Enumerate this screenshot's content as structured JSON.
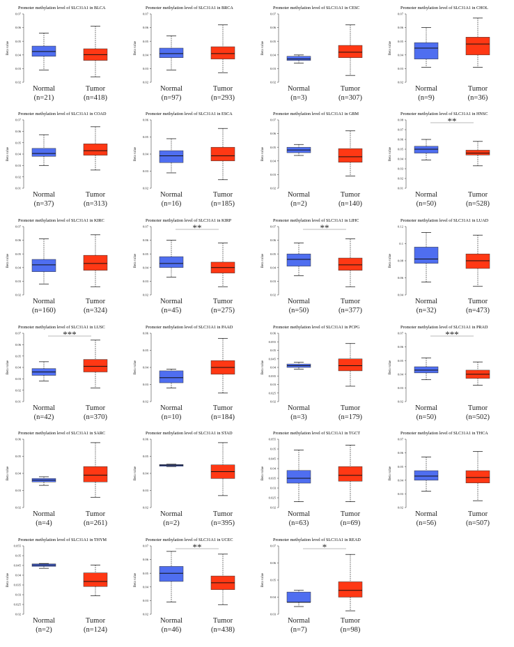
{
  "colors": {
    "normal": "#4f6ef0",
    "tumor": "#ff3814"
  },
  "chart_data": [
    {
      "type": "box",
      "title": "Promoter methylation level of SLC31A1 in BLCA",
      "ylabel": "Beta value",
      "ylim": [
        0.02,
        0.07
      ],
      "yticks": [
        "0.02",
        "0.03",
        "0.04",
        "0.05",
        "0.06",
        "0.07"
      ],
      "groups": [
        {
          "name": "Normal",
          "n": "(n=21)",
          "min": 0.029,
          "q1": 0.039,
          "median": 0.0425,
          "q3": 0.0465,
          "max": 0.056
        },
        {
          "name": "Tumor",
          "n": "(n=418)",
          "min": 0.024,
          "q1": 0.036,
          "median": 0.0402,
          "q3": 0.0445,
          "max": 0.061
        }
      ],
      "sig": ""
    },
    {
      "type": "box",
      "title": "Promoter methylation level of SLC31A1 in BRCA",
      "ylabel": "Beta value",
      "ylim": [
        0.02,
        0.07
      ],
      "yticks": [
        "0.02",
        "0.03",
        "0.04",
        "0.05",
        "0.06",
        "0.07"
      ],
      "groups": [
        {
          "name": "Normal",
          "n": "(n=97)",
          "min": 0.029,
          "q1": 0.038,
          "median": 0.041,
          "q3": 0.045,
          "max": 0.054
        },
        {
          "name": "Tumor",
          "n": "(n=293)",
          "min": 0.027,
          "q1": 0.037,
          "median": 0.041,
          "q3": 0.046,
          "max": 0.062
        }
      ],
      "sig": ""
    },
    {
      "type": "box",
      "title": "Promoter methylation level of SLC31A1 in CESC",
      "ylabel": "Beta value",
      "ylim": [
        0.02,
        0.07
      ],
      "yticks": [
        "0.02",
        "0.03",
        "0.04",
        "0.05",
        "0.06",
        "0.07"
      ],
      "groups": [
        {
          "name": "Normal",
          "n": "(n=3)",
          "min": 0.034,
          "q1": 0.036,
          "median": 0.037,
          "q3": 0.039,
          "max": 0.04
        },
        {
          "name": "Tumor",
          "n": "(n=307)",
          "min": 0.025,
          "q1": 0.038,
          "median": 0.042,
          "q3": 0.047,
          "max": 0.062
        }
      ],
      "sig": ""
    },
    {
      "type": "box",
      "title": "Promoter methylation level of SLC31A1 in CHOL",
      "ylabel": "Beta value",
      "ylim": [
        0.02,
        0.07
      ],
      "yticks": [
        "0.02",
        "0.03",
        "0.04",
        "0.05",
        "0.06",
        "0.07"
      ],
      "groups": [
        {
          "name": "Normal",
          "n": "(n=9)",
          "min": 0.031,
          "q1": 0.037,
          "median": 0.045,
          "q3": 0.049,
          "max": 0.06
        },
        {
          "name": "Tumor",
          "n": "(n=36)",
          "min": 0.031,
          "q1": 0.04,
          "median": 0.048,
          "q3": 0.053,
          "max": 0.067
        }
      ],
      "sig": ""
    },
    {
      "type": "box",
      "title": "Promoter methylation level of SLC31A1 in COAD",
      "ylabel": "Beta value",
      "ylim": [
        0.01,
        0.07
      ],
      "yticks": [
        "0.01",
        "0.02",
        "0.03",
        "0.04",
        "0.05",
        "0.06",
        "0.07"
      ],
      "groups": [
        {
          "name": "Normal",
          "n": "(n=37)",
          "min": 0.03,
          "q1": 0.038,
          "median": 0.0405,
          "q3": 0.045,
          "max": 0.057
        },
        {
          "name": "Tumor",
          "n": "(n=313)",
          "min": 0.026,
          "q1": 0.039,
          "median": 0.043,
          "q3": 0.049,
          "max": 0.064
        }
      ],
      "sig": ""
    },
    {
      "type": "box",
      "title": "Promoter methylation level of SLC31A1 in ESCA",
      "ylabel": "Beta value",
      "ylim": [
        0.02,
        0.06
      ],
      "yticks": [
        "0.02",
        "0.03",
        "0.04",
        "0.05",
        "0.06"
      ],
      "groups": [
        {
          "name": "Normal",
          "n": "(n=16)",
          "min": 0.029,
          "q1": 0.035,
          "median": 0.039,
          "q3": 0.042,
          "max": 0.049
        },
        {
          "name": "Tumor",
          "n": "(n=185)",
          "min": 0.025,
          "q1": 0.036,
          "median": 0.039,
          "q3": 0.044,
          "max": 0.055
        }
      ],
      "sig": ""
    },
    {
      "type": "box",
      "title": "Promoter methylation level of SLC31A1 in GBM",
      "ylabel": "Beta value",
      "ylim": [
        0.02,
        0.07
      ],
      "yticks": [
        "0.02",
        "0.03",
        "0.04",
        "0.05",
        "0.06",
        "0.07"
      ],
      "groups": [
        {
          "name": "Normal",
          "n": "(n=2)",
          "min": 0.044,
          "q1": 0.046,
          "median": 0.048,
          "q3": 0.05,
          "max": 0.052
        },
        {
          "name": "Tumor",
          "n": "(n=140)",
          "min": 0.029,
          "q1": 0.039,
          "median": 0.043,
          "q3": 0.049,
          "max": 0.062
        }
      ],
      "sig": ""
    },
    {
      "type": "box",
      "title": "Promoter methylation level of SLC31A1 in HNSC",
      "ylabel": "Beta value",
      "ylim": [
        0.01,
        0.08
      ],
      "yticks": [
        "0.01",
        "0.02",
        "0.03",
        "0.04",
        "0.05",
        "0.06",
        "0.07",
        "0.08"
      ],
      "groups": [
        {
          "name": "Normal",
          "n": "(n=50)",
          "min": 0.039,
          "q1": 0.046,
          "median": 0.05,
          "q3": 0.053,
          "max": 0.06
        },
        {
          "name": "Tumor",
          "n": "(n=528)",
          "min": 0.033,
          "q1": 0.044,
          "median": 0.046,
          "q3": 0.049,
          "max": 0.058
        }
      ],
      "sig": "**"
    },
    {
      "type": "box",
      "title": "Promoter methylation level of SLC31A1 in KIRC",
      "ylabel": "Beta value",
      "ylim": [
        0.02,
        0.07
      ],
      "yticks": [
        "0.02",
        "0.03",
        "0.04",
        "0.05",
        "0.06",
        "0.07"
      ],
      "groups": [
        {
          "name": "Normal",
          "n": "(n=160)",
          "min": 0.028,
          "q1": 0.037,
          "median": 0.042,
          "q3": 0.046,
          "max": 0.061
        },
        {
          "name": "Tumor",
          "n": "(n=324)",
          "min": 0.026,
          "q1": 0.038,
          "median": 0.043,
          "q3": 0.049,
          "max": 0.064
        }
      ],
      "sig": ""
    },
    {
      "type": "box",
      "title": "Promoter methylation level of SLC31A1 in KIRP",
      "ylabel": "Beta value",
      "ylim": [
        0.02,
        0.07
      ],
      "yticks": [
        "0.02",
        "0.03",
        "0.04",
        "0.05",
        "0.06",
        "0.07"
      ],
      "groups": [
        {
          "name": "Normal",
          "n": "(n=45)",
          "min": 0.033,
          "q1": 0.04,
          "median": 0.043,
          "q3": 0.048,
          "max": 0.06
        },
        {
          "name": "Tumor",
          "n": "(n=275)",
          "min": 0.026,
          "q1": 0.036,
          "median": 0.04,
          "q3": 0.044,
          "max": 0.058
        }
      ],
      "sig": "**"
    },
    {
      "type": "box",
      "title": "Promoter methylation level of SLC31A1 in LIHC",
      "ylabel": "Beta value",
      "ylim": [
        0.02,
        0.07
      ],
      "yticks": [
        "0.02",
        "0.03",
        "0.04",
        "0.05",
        "0.06",
        "0.07"
      ],
      "groups": [
        {
          "name": "Normal",
          "n": "(n=50)",
          "min": 0.034,
          "q1": 0.041,
          "median": 0.046,
          "q3": 0.05,
          "max": 0.058
        },
        {
          "name": "Tumor",
          "n": "(n=377)",
          "min": 0.026,
          "q1": 0.038,
          "median": 0.042,
          "q3": 0.047,
          "max": 0.061
        }
      ],
      "sig": "**"
    },
    {
      "type": "box",
      "title": "Promoter methylation level of SLC31A1 in LUAD",
      "ylabel": "Beta value",
      "ylim": [
        0.04,
        0.12
      ],
      "yticks": [
        "0.04",
        "0.06",
        "0.08",
        "0.1",
        "0.12"
      ],
      "groups": [
        {
          "name": "Normal",
          "n": "(n=32)",
          "min": 0.055,
          "q1": 0.077,
          "median": 0.082,
          "q3": 0.096,
          "max": 0.113
        },
        {
          "name": "Tumor",
          "n": "(n=473)",
          "min": 0.05,
          "q1": 0.071,
          "median": 0.08,
          "q3": 0.088,
          "max": 0.11
        }
      ],
      "sig": ""
    },
    {
      "type": "box",
      "title": "Promoter methylation level of SLC31A1 in LUSC",
      "ylabel": "Beta value",
      "ylim": [
        0.01,
        0.07
      ],
      "yticks": [
        "0.01",
        "0.02",
        "0.03",
        "0.04",
        "0.05",
        "0.06",
        "0.07"
      ],
      "groups": [
        {
          "name": "Normal",
          "n": "(n=42)",
          "min": 0.028,
          "q1": 0.033,
          "median": 0.036,
          "q3": 0.039,
          "max": 0.045
        },
        {
          "name": "Tumor",
          "n": "(n=370)",
          "min": 0.022,
          "q1": 0.036,
          "median": 0.041,
          "q3": 0.047,
          "max": 0.064
        }
      ],
      "sig": "***"
    },
    {
      "type": "box",
      "title": "Promoter methylation level of SLC31A1 in PAAD",
      "ylabel": "Beta value",
      "ylim": [
        0.02,
        0.06
      ],
      "yticks": [
        "0.02",
        "0.03",
        "0.04",
        "0.05",
        "0.06"
      ],
      "groups": [
        {
          "name": "Normal",
          "n": "(n=10)",
          "min": 0.028,
          "q1": 0.031,
          "median": 0.034,
          "q3": 0.038,
          "max": 0.039
        },
        {
          "name": "Tumor",
          "n": "(n=184)",
          "min": 0.025,
          "q1": 0.036,
          "median": 0.04,
          "q3": 0.044,
          "max": 0.057
        }
      ],
      "sig": ""
    },
    {
      "type": "box",
      "title": "Promoter methylation level of SLC31A1 in PCPG",
      "ylabel": "Beta value",
      "ylim": [
        0.02,
        0.06
      ],
      "yticks": [
        "0.02",
        "0.025",
        "0.03",
        "0.035",
        "0.04",
        "0.045",
        "0.05",
        "0.055",
        "0.06"
      ],
      "groups": [
        {
          "name": "Normal",
          "n": "(n=3)",
          "min": 0.039,
          "q1": 0.04,
          "median": 0.041,
          "q3": 0.042,
          "max": 0.043
        },
        {
          "name": "Tumor",
          "n": "(n=179)",
          "min": 0.029,
          "q1": 0.038,
          "median": 0.041,
          "q3": 0.045,
          "max": 0.054
        }
      ],
      "sig": ""
    },
    {
      "type": "box",
      "title": "Promoter methylation level of SLC31A1 in PRAD",
      "ylabel": "Beta value",
      "ylim": [
        0.02,
        0.07
      ],
      "yticks": [
        "0.02",
        "0.03",
        "0.04",
        "0.05",
        "0.06",
        "0.07"
      ],
      "groups": [
        {
          "name": "Normal",
          "n": "(n=50)",
          "min": 0.036,
          "q1": 0.041,
          "median": 0.043,
          "q3": 0.0455,
          "max": 0.052
        },
        {
          "name": "Tumor",
          "n": "(n=502)",
          "min": 0.032,
          "q1": 0.037,
          "median": 0.04,
          "q3": 0.043,
          "max": 0.049
        }
      ],
      "sig": "***"
    },
    {
      "type": "box",
      "title": "Promoter methylation level of SLC31A1 in SARC",
      "ylabel": "Beta value",
      "ylim": [
        0.02,
        0.06
      ],
      "yticks": [
        "0.02",
        "0.03",
        "0.04",
        "0.05",
        "0.06"
      ],
      "groups": [
        {
          "name": "Normal",
          "n": "(n=4)",
          "min": 0.033,
          "q1": 0.035,
          "median": 0.036,
          "q3": 0.037,
          "max": 0.038
        },
        {
          "name": "Tumor",
          "n": "(n=261)",
          "min": 0.026,
          "q1": 0.035,
          "median": 0.039,
          "q3": 0.044,
          "max": 0.058
        }
      ],
      "sig": ""
    },
    {
      "type": "box",
      "title": "Promoter methylation level of SLC31A1 in STAD",
      "ylabel": "Beta value",
      "ylim": [
        0.02,
        0.06
      ],
      "yticks": [
        "0.02",
        "0.03",
        "0.04",
        "0.05",
        "0.06"
      ],
      "groups": [
        {
          "name": "Normal",
          "n": "(n=2)",
          "min": 0.044,
          "q1": 0.0442,
          "median": 0.0448,
          "q3": 0.0452,
          "max": 0.0454
        },
        {
          "name": "Tumor",
          "n": "(n=395)",
          "min": 0.027,
          "q1": 0.037,
          "median": 0.041,
          "q3": 0.045,
          "max": 0.058
        }
      ],
      "sig": ""
    },
    {
      "type": "box",
      "title": "Promoter methylation level of SLC31A1 in TGCT",
      "ylabel": "Beta value",
      "ylim": [
        0.02,
        0.055
      ],
      "yticks": [
        "0.02",
        "0.025",
        "0.03",
        "0.035",
        "0.04",
        "0.045",
        "0.05",
        "0.055"
      ],
      "groups": [
        {
          "name": "Normal",
          "n": "(n=63)",
          "min": 0.023,
          "q1": 0.0325,
          "median": 0.035,
          "q3": 0.039,
          "max": 0.0495
        },
        {
          "name": "Tumor",
          "n": "(n=69)",
          "min": 0.023,
          "q1": 0.0335,
          "median": 0.0365,
          "q3": 0.041,
          "max": 0.052
        }
      ],
      "sig": ""
    },
    {
      "type": "box",
      "title": "Promoter methylation level of SLC31A1 in THCA",
      "ylabel": "Beta value",
      "ylim": [
        0.02,
        0.07
      ],
      "yticks": [
        "0.02",
        "0.03",
        "0.04",
        "0.05",
        "0.06",
        "0.07"
      ],
      "groups": [
        {
          "name": "Normal",
          "n": "(n=56)",
          "min": 0.032,
          "q1": 0.04,
          "median": 0.043,
          "q3": 0.047,
          "max": 0.057
        },
        {
          "name": "Tumor",
          "n": "(n=507)",
          "min": 0.025,
          "q1": 0.038,
          "median": 0.042,
          "q3": 0.047,
          "max": 0.061
        }
      ],
      "sig": ""
    },
    {
      "type": "box",
      "title": "Promoter methylation level of SLC31A1 in THYM",
      "ylabel": "Beta value",
      "ylim": [
        0.02,
        0.055
      ],
      "yticks": [
        "0.02",
        "0.025",
        "0.03",
        "0.035",
        "0.04",
        "0.045",
        "0.05",
        "0.055"
      ],
      "groups": [
        {
          "name": "Normal",
          "n": "(n=2)",
          "min": 0.0435,
          "q1": 0.0445,
          "median": 0.0452,
          "q3": 0.0458,
          "max": 0.046
        },
        {
          "name": "Tumor",
          "n": "(n=124)",
          "min": 0.0295,
          "q1": 0.0342,
          "median": 0.0368,
          "q3": 0.0412,
          "max": 0.0452
        }
      ],
      "sig": ""
    },
    {
      "type": "box",
      "title": "Promoter methylation level of SLC31A1 in UCEC",
      "ylabel": "Beta value",
      "ylim": [
        0.02,
        0.07
      ],
      "yticks": [
        "0.02",
        "0.03",
        "0.04",
        "0.05",
        "0.06",
        "0.07"
      ],
      "groups": [
        {
          "name": "Normal",
          "n": "(n=46)",
          "min": 0.029,
          "q1": 0.044,
          "median": 0.05,
          "q3": 0.055,
          "max": 0.066
        },
        {
          "name": "Tumor",
          "n": "(n=438)",
          "min": 0.027,
          "q1": 0.038,
          "median": 0.043,
          "q3": 0.048,
          "max": 0.064
        }
      ],
      "sig": "**"
    },
    {
      "type": "box",
      "title": "Promoter methylation level of SLC31A1 in READ",
      "ylabel": "Beta value",
      "ylim": [
        0.03,
        0.07
      ],
      "yticks": [
        "0.03",
        "0.04",
        "0.05",
        "0.06",
        "0.07"
      ],
      "groups": [
        {
          "name": "Normal",
          "n": "(n=7)",
          "min": 0.0345,
          "q1": 0.037,
          "median": 0.037,
          "q3": 0.043,
          "max": 0.044
        },
        {
          "name": "Tumor",
          "n": "(n=98)",
          "min": 0.032,
          "q1": 0.04,
          "median": 0.044,
          "q3": 0.049,
          "max": 0.065
        }
      ],
      "sig": "*"
    }
  ]
}
